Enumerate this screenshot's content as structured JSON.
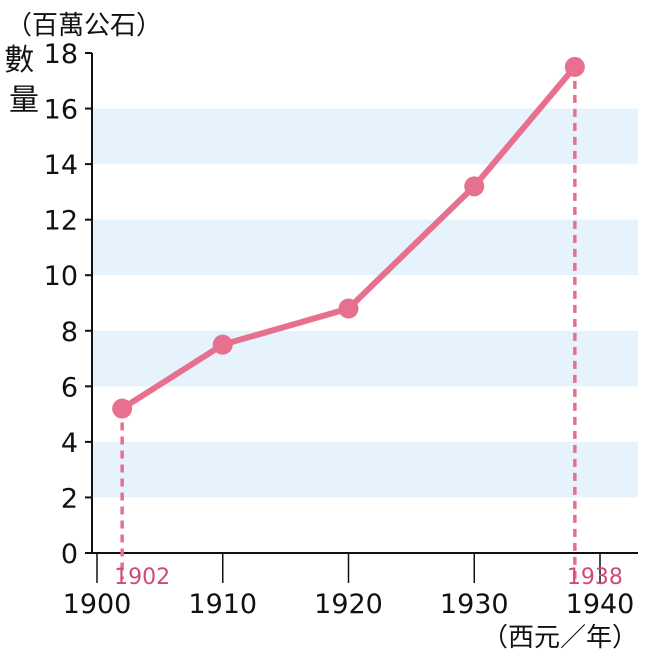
{
  "chart_data": {
    "type": "line",
    "ylabel": "數量",
    "yunit": "（百萬公石）",
    "xunit": "（西元／年）",
    "x": [
      1902,
      1910,
      1920,
      1930,
      1938
    ],
    "series": [
      {
        "values": [
          5.2,
          7.5,
          8.8,
          13.2,
          17.5
        ]
      }
    ],
    "ylim": [
      0,
      18
    ],
    "xlim": [
      1900,
      1940
    ],
    "yticks": [
      "0",
      "2",
      "4",
      "6",
      "8",
      "10",
      "12",
      "14",
      "16",
      "18"
    ],
    "xticks": [
      "1900",
      "1910",
      "1920",
      "1930",
      "1940"
    ],
    "highlighted_x": [
      "1902",
      "1938"
    ],
    "grid": "alternating horizontal bands",
    "colors": {
      "line": "#e8708f",
      "band": "#e6f3fc",
      "highlight_text": "#d04a78"
    }
  }
}
